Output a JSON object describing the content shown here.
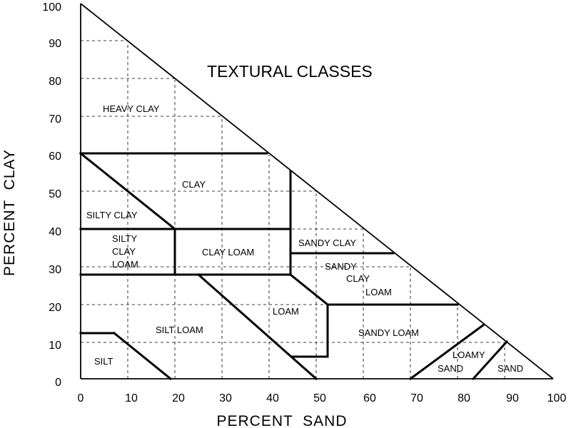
{
  "title": "TEXTURAL CLASSES",
  "x_axis": {
    "label": "PERCENT  SAND",
    "ticks": [
      "0",
      "10",
      "20",
      "30",
      "40",
      "50",
      "60",
      "70",
      "80",
      "90",
      "100"
    ]
  },
  "y_axis": {
    "label": "PERCENT  CLAY",
    "ticks": [
      "0",
      "10",
      "20",
      "30",
      "40",
      "50",
      "60",
      "70",
      "80",
      "90",
      "100"
    ]
  },
  "classes": {
    "heavy_clay": "HEAVY CLAY",
    "clay": "CLAY",
    "silty_clay": "SILTY CLAY",
    "silty_clay_loam_1": "SILTY",
    "silty_clay_loam_2": "CLAY",
    "silty_clay_loam_3": "LOAM",
    "clay_loam": "CLAY LOAM",
    "sandy_clay": "SANDY CLAY",
    "sandy_clay_loam_1": "SANDY",
    "sandy_clay_loam_2": "CLAY",
    "sandy_clay_loam_3": "LOAM",
    "loam": "LOAM",
    "silt_loam": "SILT LOAM",
    "sandy_loam": "SANDY LOAM",
    "silt": "SILT",
    "loamy_sand_1": "LOAMY",
    "loamy_sand_2": "SAND",
    "sand": "SAND"
  }
}
